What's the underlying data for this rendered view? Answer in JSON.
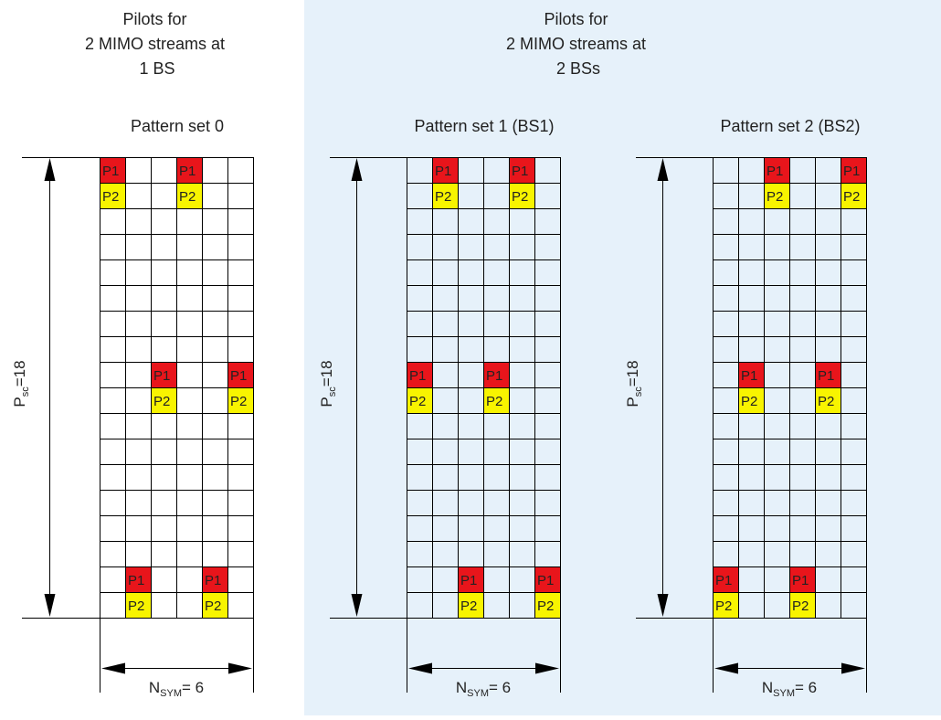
{
  "colors": {
    "background": "#ffffff",
    "shaded_panel": "#e6f1fa",
    "grid_line": "#000000",
    "p1_fill": "#e8151b",
    "p2_fill": "#f8f400",
    "text": "#222222"
  },
  "headers": [
    {
      "lines": [
        "Pilots for",
        "2 MIMO streams at",
        "1 BS"
      ]
    },
    {
      "lines": [
        "Pilots for",
        "2 MIMO streams at",
        "2 BSs"
      ]
    }
  ],
  "pattern_sets": [
    {
      "title": "Pattern set 0",
      "rows": 18,
      "cols": 6,
      "pilots": [
        {
          "row": 0,
          "col": 0,
          "label": "P1"
        },
        {
          "row": 1,
          "col": 0,
          "label": "P2"
        },
        {
          "row": 0,
          "col": 3,
          "label": "P1"
        },
        {
          "row": 1,
          "col": 3,
          "label": "P2"
        },
        {
          "row": 8,
          "col": 2,
          "label": "P1"
        },
        {
          "row": 9,
          "col": 2,
          "label": "P2"
        },
        {
          "row": 8,
          "col": 5,
          "label": "P1"
        },
        {
          "row": 9,
          "col": 5,
          "label": "P2"
        },
        {
          "row": 16,
          "col": 1,
          "label": "P1"
        },
        {
          "row": 17,
          "col": 1,
          "label": "P2"
        },
        {
          "row": 16,
          "col": 4,
          "label": "P1"
        },
        {
          "row": 17,
          "col": 4,
          "label": "P2"
        }
      ],
      "vertical_label": {
        "main": "P",
        "sub": "sc",
        "suffix": "=18"
      },
      "horizontal_label": {
        "main": "N",
        "sub": "SYM",
        "suffix": "= 6"
      }
    },
    {
      "title": "Pattern set 1 (BS1)",
      "rows": 18,
      "cols": 6,
      "pilots": [
        {
          "row": 0,
          "col": 1,
          "label": "P1"
        },
        {
          "row": 1,
          "col": 1,
          "label": "P2"
        },
        {
          "row": 0,
          "col": 4,
          "label": "P1"
        },
        {
          "row": 1,
          "col": 4,
          "label": "P2"
        },
        {
          "row": 8,
          "col": 0,
          "label": "P1"
        },
        {
          "row": 9,
          "col": 0,
          "label": "P2"
        },
        {
          "row": 8,
          "col": 3,
          "label": "P1"
        },
        {
          "row": 9,
          "col": 3,
          "label": "P2"
        },
        {
          "row": 16,
          "col": 2,
          "label": "P1"
        },
        {
          "row": 17,
          "col": 2,
          "label": "P2"
        },
        {
          "row": 16,
          "col": 5,
          "label": "P1"
        },
        {
          "row": 17,
          "col": 5,
          "label": "P2"
        }
      ],
      "vertical_label": {
        "main": "P",
        "sub": "sc",
        "suffix": "=18"
      },
      "horizontal_label": {
        "main": "N",
        "sub": "SYM",
        "suffix": "= 6"
      }
    },
    {
      "title": "Pattern set 2 (BS2)",
      "rows": 18,
      "cols": 6,
      "pilots": [
        {
          "row": 0,
          "col": 2,
          "label": "P1"
        },
        {
          "row": 1,
          "col": 2,
          "label": "P2"
        },
        {
          "row": 0,
          "col": 5,
          "label": "P1"
        },
        {
          "row": 1,
          "col": 5,
          "label": "P2"
        },
        {
          "row": 8,
          "col": 1,
          "label": "P1"
        },
        {
          "row": 9,
          "col": 1,
          "label": "P2"
        },
        {
          "row": 8,
          "col": 4,
          "label": "P1"
        },
        {
          "row": 9,
          "col": 4,
          "label": "P2"
        },
        {
          "row": 16,
          "col": 0,
          "label": "P1"
        },
        {
          "row": 17,
          "col": 0,
          "label": "P2"
        },
        {
          "row": 16,
          "col": 3,
          "label": "P1"
        },
        {
          "row": 17,
          "col": 3,
          "label": "P2"
        }
      ],
      "vertical_label": {
        "main": "P",
        "sub": "sc",
        "suffix": "=18"
      },
      "horizontal_label": {
        "main": "N",
        "sub": "SYM",
        "suffix": "= 6"
      }
    }
  ]
}
